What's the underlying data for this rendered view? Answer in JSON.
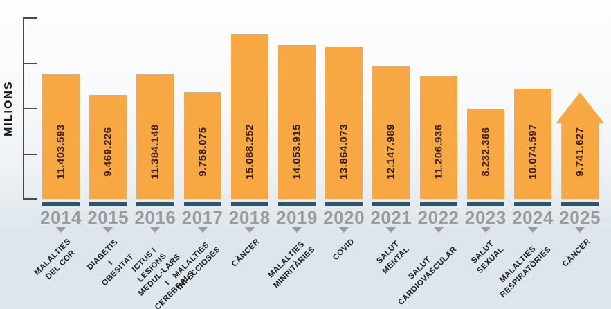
{
  "chart_data": {
    "type": "bar",
    "title": "",
    "ylabel": "MILIONS",
    "xlabel": "",
    "unit": "milions",
    "axis_ticks": 5,
    "grid": false,
    "legend": "none",
    "note_last_bar": "2025 bar drawn as upward arrow shape",
    "categories": [
      "2014",
      "2015",
      "2016",
      "2017",
      "2018",
      "2019",
      "2020",
      "2021",
      "2022",
      "2023",
      "2024",
      "2025"
    ],
    "values": [
      11403593,
      9469226,
      11384148,
      9758075,
      15068252,
      14053915,
      13864073,
      12147989,
      11206936,
      8232366,
      10074597,
      9741627
    ],
    "bars": [
      {
        "year": "2014",
        "value": 11403593,
        "value_label": "11.403.593",
        "label": "MALALTIES\nDEL COR",
        "shape": "rect"
      },
      {
        "year": "2015",
        "value": 9469226,
        "value_label": "9.469.226",
        "label": "DIABETIS\nI OBESITAT",
        "shape": "rect"
      },
      {
        "year": "2016",
        "value": 11384148,
        "value_label": "11.384.148",
        "label": "ICTUS I LESIONS\nMEDUL·LARS\nI CEREBRALS",
        "shape": "rect"
      },
      {
        "year": "2017",
        "value": 9758075,
        "value_label": "9.758.075",
        "label": "MALALTIES\nINFECCIOSES",
        "shape": "rect"
      },
      {
        "year": "2018",
        "value": 15068252,
        "value_label": "15.068.252",
        "label": "CÀNCER",
        "shape": "rect"
      },
      {
        "year": "2019",
        "value": 14053915,
        "value_label": "14.053.915",
        "label": "MALALTIES\nMINRITÀRIES",
        "shape": "rect"
      },
      {
        "year": "2020",
        "value": 13864073,
        "value_label": "13.864.073",
        "label": "COVID",
        "shape": "rect"
      },
      {
        "year": "2021",
        "value": 12147989,
        "value_label": "12.147.989",
        "label": "SALUT\nMENTAL",
        "shape": "rect"
      },
      {
        "year": "2022",
        "value": 11206936,
        "value_label": "11.206.936",
        "label": "SALUT\nCARDIOVASCULAR",
        "shape": "rect"
      },
      {
        "year": "2023",
        "value": 8232366,
        "value_label": "8.232.366",
        "label": "SALUT\nSEXUAL",
        "shape": "rect"
      },
      {
        "year": "2024",
        "value": 10074597,
        "value_label": "10.074.597",
        "label": "MALALTIES\nRESPIRATÒRIES",
        "shape": "rect"
      },
      {
        "year": "2025",
        "value": 9741627,
        "value_label": "9.741.627",
        "label": "CÀNCER",
        "shape": "arrow-up"
      }
    ]
  },
  "colors": {
    "bar": "#F8A843",
    "bar_base": "#2F5469",
    "year_label": "#9C9B9B",
    "value_text": "#33220E",
    "category_text": "#1D1D1B",
    "axis": "#4A4A49",
    "bg_top": "#FEFDFE",
    "bg_bottom": "#DDE7ED"
  }
}
